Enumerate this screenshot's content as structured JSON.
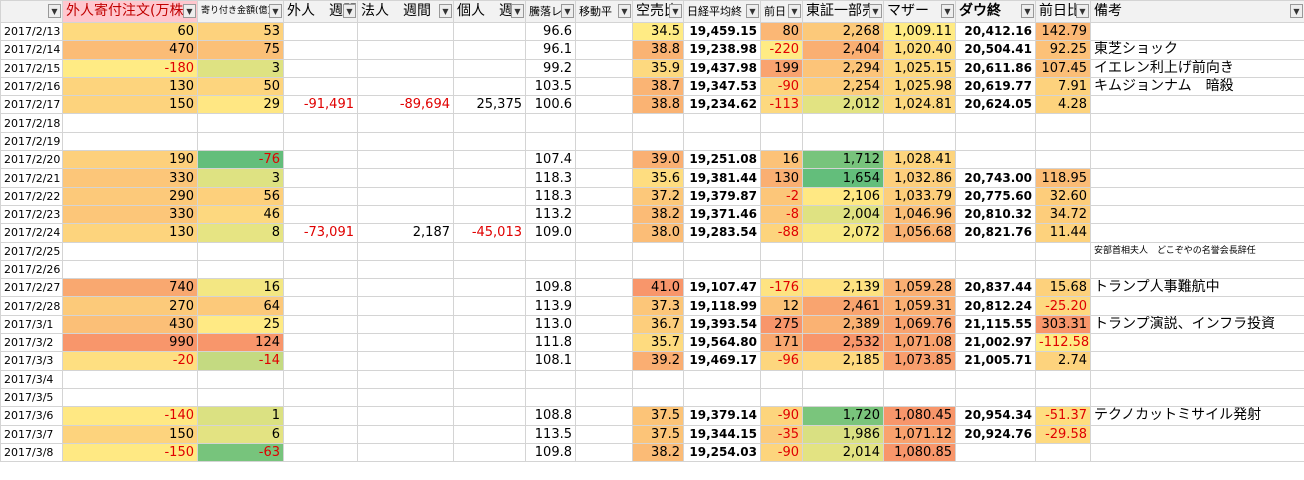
{
  "table": {
    "headers": [
      "外人寄付注文(万株)",
      "寄り付き金額(億)",
      "外人　週間差",
      "法人　週間",
      "個人　週",
      "騰落レシ",
      "移動平",
      "空売比",
      "日経平均終",
      "前日",
      "東証一部売",
      "マザー",
      "ダウ終",
      "前日比",
      "備考"
    ],
    "rows": [
      [
        "2017/2/13",
        "60",
        "53",
        null,
        null,
        null,
        "96.6",
        null,
        "34.5",
        "19,459.15",
        "80",
        "2,268",
        "1,009.11",
        "20,412.16",
        "142.79",
        null
      ],
      [
        "2017/2/14",
        "470",
        "75",
        null,
        null,
        null,
        "96.1",
        null,
        "38.8",
        "19,238.98",
        "-220",
        "2,404",
        "1,020.40",
        "20,504.41",
        "92.25",
        "東芝ショック"
      ],
      [
        "2017/2/15",
        "-180",
        "3",
        null,
        null,
        null,
        "99.2",
        null,
        "35.9",
        "19,437.98",
        "199",
        "2,294",
        "1,025.15",
        "20,611.86",
        "107.45",
        "イエレン利上げ前向き"
      ],
      [
        "2017/2/16",
        "130",
        "50",
        null,
        null,
        null,
        "103.5",
        null,
        "38.7",
        "19,347.53",
        "-90",
        "2,254",
        "1,025.98",
        "20,619.77",
        "7.91",
        "キムジョンナム　暗殺"
      ],
      [
        "2017/2/17",
        "150",
        "29",
        "-91,491",
        "-89,694",
        "25,375",
        "100.6",
        null,
        "38.8",
        "19,234.62",
        "-113",
        "2,012",
        "1,024.81",
        "20,624.05",
        "4.28",
        null
      ],
      [
        "2017/2/18",
        null,
        null,
        null,
        null,
        null,
        null,
        null,
        null,
        null,
        null,
        null,
        null,
        null,
        null,
        null
      ],
      [
        "2017/2/19",
        null,
        null,
        null,
        null,
        null,
        null,
        null,
        null,
        null,
        null,
        null,
        null,
        null,
        null,
        null
      ],
      [
        "2017/2/20",
        "190",
        "-76",
        null,
        null,
        null,
        "107.4",
        null,
        "39.0",
        "19,251.08",
        "16",
        "1,712",
        "1,028.41",
        null,
        null,
        null
      ],
      [
        "2017/2/21",
        "330",
        "3",
        null,
        null,
        null,
        "118.3",
        null,
        "35.6",
        "19,381.44",
        "130",
        "1,654",
        "1,032.86",
        "20,743.00",
        "118.95",
        null
      ],
      [
        "2017/2/22",
        "290",
        "56",
        null,
        null,
        null,
        "118.3",
        null,
        "37.2",
        "19,379.87",
        "-2",
        "2,106",
        "1,033.79",
        "20,775.60",
        "32.60",
        null
      ],
      [
        "2017/2/23",
        "330",
        "46",
        null,
        null,
        null,
        "113.2",
        null,
        "38.2",
        "19,371.46",
        "-8",
        "2,004",
        "1,046.96",
        "20,810.32",
        "34.72",
        null
      ],
      [
        "2017/2/24",
        "130",
        "8",
        "-73,091",
        "2,187",
        "-45,013",
        "109.0",
        null,
        "38.0",
        "19,283.54",
        "-88",
        "2,072",
        "1,056.68",
        "20,821.76",
        "11.44",
        null
      ],
      [
        "2017/2/25",
        null,
        null,
        null,
        null,
        null,
        null,
        null,
        null,
        null,
        null,
        null,
        null,
        null,
        null,
        "安部首相夫人　どこぞやの名誉会長辞任"
      ],
      [
        "2017/2/26",
        null,
        null,
        null,
        null,
        null,
        null,
        null,
        null,
        null,
        null,
        null,
        null,
        null,
        null,
        null
      ],
      [
        "2017/2/27",
        "740",
        "16",
        null,
        null,
        null,
        "109.8",
        null,
        "41.0",
        "19,107.47",
        "-176",
        "2,139",
        "1,059.28",
        "20,837.44",
        "15.68",
        "トランプ人事難航中"
      ],
      [
        "2017/2/28",
        "270",
        "64",
        null,
        null,
        null,
        "113.9",
        null,
        "37.3",
        "19,118.99",
        "12",
        "2,461",
        "1,059.31",
        "20,812.24",
        "-25.20",
        null
      ],
      [
        "2017/3/1",
        "430",
        "25",
        null,
        null,
        null,
        "113.0",
        null,
        "36.7",
        "19,393.54",
        "275",
        "2,389",
        "1,069.76",
        "21,115.55",
        "303.31",
        "トランプ演説、インフラ投資"
      ],
      [
        "2017/3/2",
        "990",
        "124",
        null,
        null,
        null,
        "111.8",
        null,
        "35.7",
        "19,564.80",
        "171",
        "2,532",
        "1,071.08",
        "21,002.97",
        "-112.58",
        null
      ],
      [
        "2017/3/3",
        "-20",
        "-14",
        null,
        null,
        null,
        "108.1",
        null,
        "39.2",
        "19,469.17",
        "-96",
        "2,185",
        "1,073.85",
        "21,005.71",
        "2.74",
        null
      ],
      [
        "2017/3/4",
        null,
        null,
        null,
        null,
        null,
        null,
        null,
        null,
        null,
        null,
        null,
        null,
        null,
        null,
        null
      ],
      [
        "2017/3/5",
        null,
        null,
        null,
        null,
        null,
        null,
        null,
        null,
        null,
        null,
        null,
        null,
        null,
        null,
        null
      ],
      [
        "2017/3/6",
        "-140",
        "1",
        null,
        null,
        null,
        "108.8",
        null,
        "37.5",
        "19,379.14",
        "-90",
        "1,720",
        "1,080.45",
        "20,954.34",
        "-51.37",
        "テクノカットミサイル発射"
      ],
      [
        "2017/3/7",
        "150",
        "6",
        null,
        null,
        null,
        "113.5",
        null,
        "37.5",
        "19,344.15",
        "-35",
        "1,986",
        "1,071.12",
        "20,924.76",
        "-29.58",
        null
      ],
      [
        "2017/3/8",
        "-150",
        "-63",
        null,
        null,
        null,
        "109.8",
        null,
        "38.2",
        "19,254.03",
        "-90",
        "2,014",
        "1,080.85",
        null,
        null,
        null
      ]
    ]
  }
}
